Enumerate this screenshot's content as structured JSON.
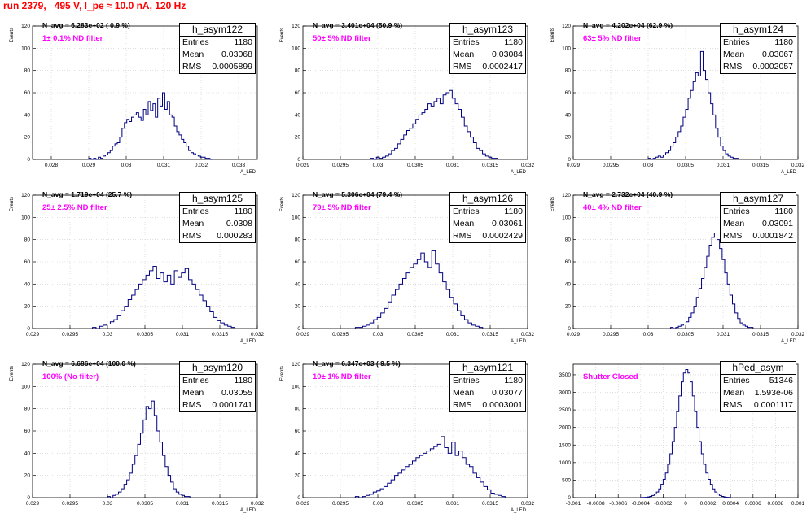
{
  "header": {
    "title": "run 2379,   495 V, I_pe ≈ 10.0 nA, 120 Hz"
  },
  "colors": {
    "histogram": "#000080",
    "title": "#ff0000",
    "annotation": "#ff00ff",
    "grid": "#cccccc"
  },
  "chart_data": [
    {
      "type": "histogram",
      "name": "h_asym122",
      "stats": {
        "entries_label": "Entries",
        "entries": "1180",
        "mean_label": "Mean",
        "mean": "0.03068",
        "rms_label": "RMS",
        "rms": "0.0005899"
      },
      "navg_text": "N_avg = 6.283e+02 ( 0.9 %)",
      "filter_text": "1± 0.1% ND filter",
      "ylabel": "Events",
      "xlabel": "A_LED",
      "xlim": [
        0.0275,
        0.0335
      ],
      "ylim": [
        0,
        120
      ],
      "yticks": [
        0,
        20,
        40,
        60,
        80,
        100,
        120
      ],
      "xticks": [
        0.028,
        0.029,
        0.03,
        0.031,
        0.032,
        0.033
      ],
      "xtick_labels": [
        "0.028",
        "0.029",
        "0.03",
        "0.031",
        "0.032",
        "0.033"
      ],
      "bin_edges_range": [
        0.029,
        0.0323
      ],
      "counts": [
        1,
        0,
        1,
        0,
        2,
        1,
        3,
        4,
        6,
        8,
        12,
        14,
        15,
        20,
        28,
        33,
        36,
        34,
        38,
        40,
        42,
        38,
        35,
        45,
        40,
        52,
        44,
        50,
        38,
        55,
        48,
        60,
        45,
        52,
        40,
        38,
        30,
        25,
        22,
        18,
        15,
        12,
        8,
        6,
        5,
        4,
        3,
        2,
        2,
        1,
        1,
        0
      ]
    },
    {
      "type": "histogram",
      "name": "h_asym123",
      "stats": {
        "entries_label": "Entries",
        "entries": "1180",
        "mean_label": "Mean",
        "mean": "0.03084",
        "rms_label": "RMS",
        "rms": "0.0002417"
      },
      "navg_text": "N_avg = 3.401e+04 (50.9 %)",
      "filter_text": "50± 5% ND filter",
      "ylabel": "Events",
      "xlabel": "A_LED",
      "xlim": [
        0.029,
        0.032
      ],
      "ylim": [
        0,
        120
      ],
      "yticks": [
        0,
        20,
        40,
        60,
        80,
        100,
        120
      ],
      "xticks": [
        0.029,
        0.0295,
        0.03,
        0.0305,
        0.031,
        0.0315,
        0.032
      ],
      "xtick_labels": [
        "0.029",
        "0.0295",
        "0.03",
        "0.0305",
        "0.031",
        "0.0315",
        "0.032"
      ],
      "bin_edges_range": [
        0.0299,
        0.0316
      ],
      "counts": [
        1,
        0,
        2,
        1,
        2,
        3,
        5,
        8,
        10,
        14,
        18,
        22,
        26,
        28,
        32,
        36,
        40,
        42,
        45,
        50,
        48,
        52,
        55,
        50,
        58,
        60,
        62,
        55,
        50,
        45,
        38,
        30,
        25,
        20,
        15,
        10,
        8,
        5,
        3,
        2,
        1,
        1
      ]
    },
    {
      "type": "histogram",
      "name": "h_asym124",
      "stats": {
        "entries_label": "Entries",
        "entries": "1180",
        "mean_label": "Mean",
        "mean": "0.03067",
        "rms_label": "RMS",
        "rms": "0.0002057"
      },
      "navg_text": "N_avg = 4.202e+04 (62.9 %)",
      "filter_text": "63± 5% ND filter",
      "ylabel": "Events",
      "xlabel": "A_LED",
      "xlim": [
        0.029,
        0.032
      ],
      "ylim": [
        0,
        120
      ],
      "yticks": [
        0,
        20,
        40,
        60,
        80,
        100,
        120
      ],
      "xticks": [
        0.029,
        0.0295,
        0.03,
        0.0305,
        0.031,
        0.0315,
        0.032
      ],
      "xtick_labels": [
        "0.029",
        "0.0295",
        "0.03",
        "0.0305",
        "0.031",
        "0.0315",
        "0.032"
      ],
      "bin_edges_range": [
        0.03,
        0.0312
      ],
      "counts": [
        1,
        0,
        1,
        2,
        3,
        2,
        4,
        6,
        8,
        12,
        15,
        20,
        25,
        30,
        38,
        45,
        55,
        62,
        70,
        78,
        75,
        97,
        80,
        72,
        60,
        50,
        40,
        28,
        20,
        12,
        8,
        5,
        3,
        2,
        1,
        1
      ]
    },
    {
      "type": "histogram",
      "name": "h_asym125",
      "stats": {
        "entries_label": "Entries",
        "entries": "1180",
        "mean_label": "Mean",
        "mean": "0.0308",
        "rms_label": "RMS",
        "rms": "0.000283"
      },
      "navg_text": "N_avg = 1.719e+04 (25.7 %)",
      "filter_text": "25± 2.5% ND filter",
      "ylabel": "Events",
      "xlabel": "A_LED",
      "xlim": [
        0.029,
        0.032
      ],
      "ylim": [
        0,
        120
      ],
      "yticks": [
        0,
        20,
        40,
        60,
        80,
        100,
        120
      ],
      "xticks": [
        0.029,
        0.0295,
        0.03,
        0.0305,
        0.031,
        0.0315,
        0.032
      ],
      "xtick_labels": [
        "0.029",
        "0.0295",
        "0.03",
        "0.0305",
        "0.031",
        "0.0315",
        "0.032"
      ],
      "bin_edges_range": [
        0.0298,
        0.0317
      ],
      "counts": [
        1,
        0,
        2,
        3,
        4,
        6,
        8,
        12,
        16,
        20,
        26,
        30,
        35,
        40,
        44,
        48,
        52,
        56,
        45,
        50,
        42,
        48,
        40,
        52,
        46,
        50,
        54,
        44,
        40,
        35,
        30,
        25,
        20,
        15,
        10,
        7,
        5,
        3,
        2,
        1
      ]
    },
    {
      "type": "histogram",
      "name": "h_asym126",
      "stats": {
        "entries_label": "Entries",
        "entries": "1180",
        "mean_label": "Mean",
        "mean": "0.03061",
        "rms_label": "RMS",
        "rms": "0.0002429"
      },
      "navg_text": "N_avg = 5.306e+04 (79.4 %)",
      "filter_text": "79± 5% ND filter",
      "ylabel": "Events",
      "xlabel": "A_LED",
      "xlim": [
        0.029,
        0.032
      ],
      "ylim": [
        0,
        120
      ],
      "yticks": [
        0,
        20,
        40,
        60,
        80,
        100,
        120
      ],
      "xticks": [
        0.029,
        0.0295,
        0.03,
        0.0305,
        0.031,
        0.0315,
        0.032
      ],
      "xtick_labels": [
        "0.029",
        "0.0295",
        "0.03",
        "0.0305",
        "0.031",
        "0.0315",
        "0.032"
      ],
      "bin_edges_range": [
        0.0297,
        0.0314
      ],
      "counts": [
        1,
        1,
        2,
        3,
        5,
        8,
        10,
        14,
        18,
        24,
        30,
        35,
        40,
        45,
        50,
        55,
        58,
        62,
        68,
        60,
        55,
        70,
        58,
        50,
        42,
        35,
        28,
        22,
        16,
        12,
        8,
        5,
        3,
        2,
        1
      ]
    },
    {
      "type": "histogram",
      "name": "h_asym127",
      "stats": {
        "entries_label": "Entries",
        "entries": "1180",
        "mean_label": "Mean",
        "mean": "0.03091",
        "rms_label": "RMS",
        "rms": "0.0001842"
      },
      "navg_text": "N_avg = 2.732e+04 (40.9 %)",
      "filter_text": "40± 4% ND filter",
      "ylabel": "Events",
      "xlabel": "A_LED",
      "xlim": [
        0.029,
        0.032
      ],
      "ylim": [
        0,
        120
      ],
      "yticks": [
        0,
        20,
        40,
        60,
        80,
        100,
        120
      ],
      "xticks": [
        0.029,
        0.0295,
        0.03,
        0.0305,
        0.031,
        0.0315,
        0.032
      ],
      "xtick_labels": [
        "0.029",
        "0.0295",
        "0.03",
        "0.0305",
        "0.031",
        "0.0315",
        "0.032"
      ],
      "bin_edges_range": [
        0.0303,
        0.0314
      ],
      "counts": [
        1,
        0,
        1,
        2,
        3,
        4,
        6,
        10,
        14,
        20,
        28,
        36,
        45,
        55,
        65,
        75,
        82,
        86,
        80,
        72,
        62,
        50,
        40,
        30,
        22,
        14,
        9,
        5,
        3,
        2,
        1,
        1
      ]
    },
    {
      "type": "histogram",
      "name": "h_asym120",
      "stats": {
        "entries_label": "Entries",
        "entries": "1180",
        "mean_label": "Mean",
        "mean": "0.03055",
        "rms_label": "RMS",
        "rms": "0.0001741"
      },
      "navg_text": "N_avg = 6.686e+04 (100.0 %)",
      "filter_text": "100% (No filter)",
      "ylabel": "Events",
      "xlabel": "A_LED",
      "xlim": [
        0.029,
        0.032
      ],
      "ylim": [
        0,
        120
      ],
      "yticks": [
        0,
        20,
        40,
        60,
        80,
        100,
        120
      ],
      "xticks": [
        0.029,
        0.0295,
        0.03,
        0.0305,
        0.031,
        0.0315,
        0.032
      ],
      "xtick_labels": [
        "0.029",
        "0.0295",
        "0.03",
        "0.0305",
        "0.031",
        "0.0315",
        "0.032"
      ],
      "bin_edges_range": [
        0.03,
        0.0311
      ],
      "counts": [
        1,
        0,
        2,
        3,
        5,
        8,
        12,
        16,
        22,
        30,
        38,
        48,
        58,
        70,
        82,
        80,
        87,
        74,
        60,
        50,
        38,
        28,
        20,
        14,
        8,
        5,
        3,
        2,
        1,
        1
      ]
    },
    {
      "type": "histogram",
      "name": "h_asym121",
      "stats": {
        "entries_label": "Entries",
        "entries": "1180",
        "mean_label": "Mean",
        "mean": "0.03077",
        "rms_label": "RMS",
        "rms": "0.0003001"
      },
      "navg_text": "N_avg = 6.347e+03 ( 9.5 %)",
      "filter_text": "10± 1% ND filter",
      "ylabel": "Events",
      "xlabel": "A_LED",
      "xlim": [
        0.029,
        0.032
      ],
      "ylim": [
        0,
        120
      ],
      "yticks": [
        0,
        20,
        40,
        60,
        80,
        100,
        120
      ],
      "xticks": [
        0.029,
        0.0295,
        0.03,
        0.0305,
        0.031,
        0.0315,
        0.032
      ],
      "xtick_labels": [
        "0.029",
        "0.0295",
        "0.03",
        "0.0305",
        "0.031",
        "0.0315",
        "0.032"
      ],
      "bin_edges_range": [
        0.0297,
        0.0317
      ],
      "counts": [
        1,
        0,
        1,
        2,
        3,
        5,
        6,
        8,
        10,
        13,
        16,
        20,
        22,
        25,
        28,
        30,
        33,
        36,
        38,
        40,
        42,
        44,
        46,
        48,
        55,
        45,
        40,
        50,
        38,
        42,
        36,
        30,
        28,
        22,
        18,
        14,
        10,
        7,
        4,
        3,
        2,
        1
      ]
    },
    {
      "type": "histogram",
      "name": "hPed_asym",
      "stats": {
        "entries_label": "Entries",
        "entries": "51346",
        "mean_label": "Mean",
        "mean": "1.593e-06",
        "rms_label": "RMS",
        "rms": "0.0001117"
      },
      "navg_text": "",
      "filter_text": "Shutter Closed",
      "ylabel": "",
      "xlabel": "",
      "xlim": [
        -0.001,
        0.001
      ],
      "ylim": [
        0,
        3800
      ],
      "yticks": [
        0,
        500,
        1000,
        1500,
        2000,
        2500,
        3000,
        3500
      ],
      "xticks": [
        -0.001,
        -0.0008,
        -0.0006,
        -0.0004,
        -0.0002,
        0,
        0.0002,
        0.0004,
        0.0006,
        0.0008,
        0.001
      ],
      "xtick_labels": [
        "-0.001",
        "-0.0008",
        "-0.0006",
        "-0.0004",
        "-0.0002",
        "0",
        "0.0002",
        "0.0004",
        "0.0006",
        "0.0008",
        "0.001"
      ],
      "bin_edges_range": [
        -0.0004,
        0.0004
      ],
      "counts": [
        2,
        5,
        10,
        20,
        35,
        60,
        100,
        160,
        250,
        380,
        520,
        700,
        950,
        1250,
        1600,
        2000,
        2450,
        2900,
        3300,
        3550,
        3650,
        3550,
        3300,
        2900,
        2450,
        2000,
        1600,
        1250,
        950,
        700,
        520,
        380,
        250,
        160,
        100,
        60,
        35,
        20,
        10,
        5
      ]
    }
  ]
}
